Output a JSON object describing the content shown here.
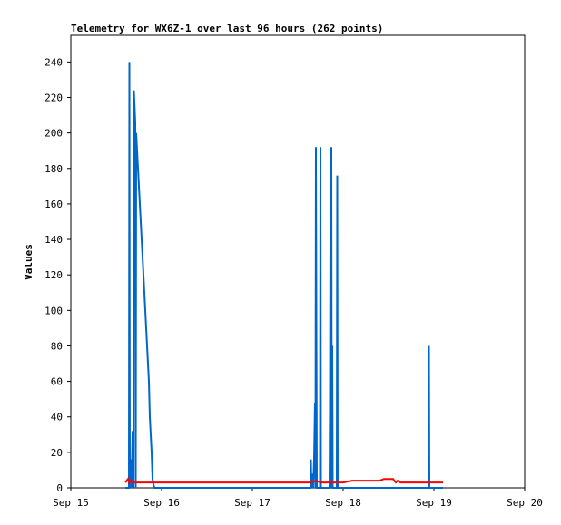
{
  "chart_data": {
    "type": "line",
    "title": "Telemetry for WX6Z-1 over last 96 hours (262 points)",
    "xlabel": "",
    "ylabel": "Values",
    "xlim": [
      15.0,
      20.0
    ],
    "ylim": [
      0,
      255
    ],
    "x_ticks": [
      {
        "value": 15,
        "label": "Sep 15"
      },
      {
        "value": 16,
        "label": "Sep 16"
      },
      {
        "value": 17,
        "label": "Sep 17"
      },
      {
        "value": 18,
        "label": "Sep 18"
      },
      {
        "value": 19,
        "label": "Sep 19"
      },
      {
        "value": 20,
        "label": "Sep 20"
      }
    ],
    "y_ticks": [
      0,
      20,
      40,
      60,
      80,
      100,
      120,
      140,
      160,
      180,
      200,
      220,
      240
    ],
    "grid": false,
    "series": [
      {
        "color": "#0066cc",
        "points": [
          [
            15.6,
            0
          ],
          [
            15.64,
            0
          ],
          [
            15.645,
            240
          ],
          [
            15.65,
            0
          ],
          [
            15.66,
            16
          ],
          [
            15.67,
            0
          ],
          [
            15.68,
            32
          ],
          [
            15.69,
            0
          ],
          [
            15.695,
            224
          ],
          [
            15.7,
            218
          ],
          [
            15.705,
            212
          ],
          [
            15.71,
            206
          ],
          [
            15.715,
            0
          ],
          [
            15.72,
            200
          ],
          [
            15.73,
            190
          ],
          [
            15.74,
            180
          ],
          [
            15.75,
            170
          ],
          [
            15.76,
            160
          ],
          [
            15.77,
            150
          ],
          [
            15.78,
            140
          ],
          [
            15.79,
            130
          ],
          [
            15.8,
            120
          ],
          [
            15.81,
            110
          ],
          [
            15.82,
            100
          ],
          [
            15.83,
            90
          ],
          [
            15.84,
            80
          ],
          [
            15.85,
            70
          ],
          [
            15.86,
            60
          ],
          [
            15.87,
            40
          ],
          [
            15.88,
            30
          ],
          [
            15.89,
            20
          ],
          [
            15.9,
            5
          ],
          [
            15.91,
            2
          ],
          [
            15.92,
            0
          ],
          [
            17.64,
            0
          ],
          [
            17.645,
            16
          ],
          [
            17.65,
            0
          ],
          [
            17.66,
            8
          ],
          [
            17.67,
            0
          ],
          [
            17.68,
            16
          ],
          [
            17.69,
            48
          ],
          [
            17.695,
            0
          ],
          [
            17.7,
            192
          ],
          [
            17.705,
            96
          ],
          [
            17.71,
            0
          ],
          [
            17.745,
            0
          ],
          [
            17.75,
            192
          ],
          [
            17.755,
            0
          ],
          [
            17.85,
            0
          ],
          [
            17.855,
            48
          ],
          [
            17.86,
            144
          ],
          [
            17.865,
            0
          ],
          [
            17.87,
            192
          ],
          [
            17.875,
            0
          ],
          [
            17.88,
            80
          ],
          [
            17.885,
            0
          ],
          [
            17.93,
            0
          ],
          [
            17.935,
            176
          ],
          [
            17.94,
            0
          ],
          [
            18.94,
            0
          ],
          [
            18.945,
            80
          ],
          [
            18.95,
            0
          ],
          [
            19.1,
            0
          ]
        ]
      },
      {
        "color": "#ff0000",
        "points": [
          [
            15.6,
            3
          ],
          [
            15.63,
            5
          ],
          [
            15.64,
            3
          ],
          [
            15.66,
            4
          ],
          [
            15.68,
            3
          ],
          [
            15.72,
            3
          ],
          [
            15.75,
            3
          ],
          [
            15.8,
            3
          ],
          [
            15.85,
            3
          ],
          [
            15.9,
            3
          ],
          [
            16.0,
            3
          ],
          [
            16.5,
            3
          ],
          [
            17.0,
            3
          ],
          [
            17.5,
            3
          ],
          [
            17.65,
            3
          ],
          [
            17.7,
            4
          ],
          [
            17.75,
            3
          ],
          [
            17.8,
            3
          ],
          [
            17.85,
            3
          ],
          [
            17.9,
            3
          ],
          [
            18.0,
            3
          ],
          [
            18.1,
            4
          ],
          [
            18.2,
            4
          ],
          [
            18.3,
            4
          ],
          [
            18.4,
            4
          ],
          [
            18.45,
            5
          ],
          [
            18.5,
            5
          ],
          [
            18.55,
            5
          ],
          [
            18.58,
            3
          ],
          [
            18.6,
            4
          ],
          [
            18.63,
            3
          ],
          [
            18.65,
            3
          ],
          [
            18.7,
            3
          ],
          [
            18.8,
            3
          ],
          [
            18.9,
            3
          ],
          [
            19.0,
            3
          ],
          [
            19.05,
            3
          ],
          [
            19.1,
            3
          ]
        ]
      }
    ]
  }
}
